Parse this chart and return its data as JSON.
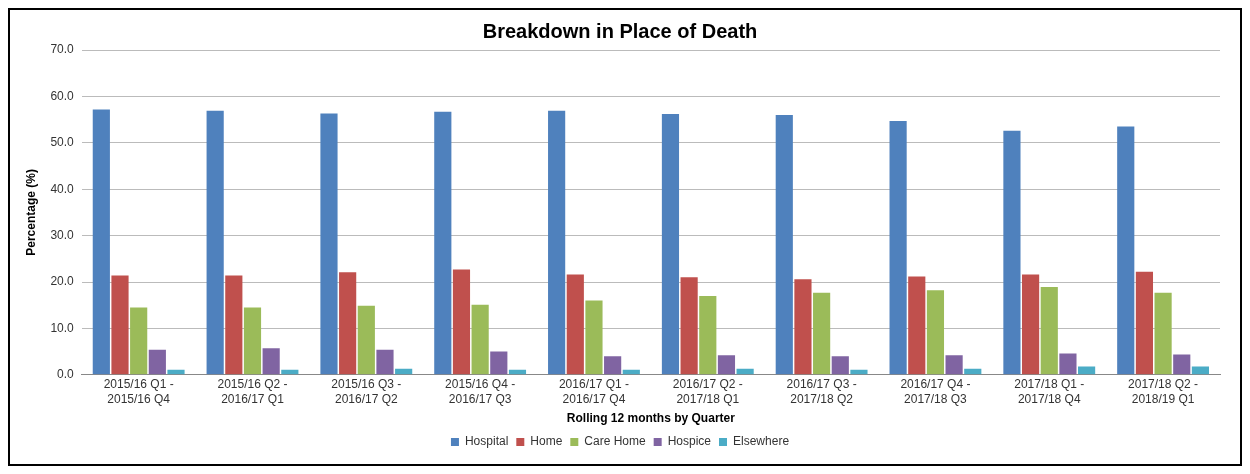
{
  "chart_data": {
    "type": "bar",
    "title": "Breakdown in Place of Death",
    "xlabel": "Rolling 12 months by Quarter",
    "ylabel": "Percentage (%)",
    "categories": [
      "2015/16 Q1 - 2015/16 Q4",
      "2015/16 Q2 - 2016/17 Q1",
      "2015/16 Q3 - 2016/17 Q2",
      "2015/16 Q4 - 2016/17 Q3",
      "2016/17 Q1 - 2016/17 Q4",
      "2016/17 Q2 - 2017/18 Q1",
      "2016/17 Q3 - 2017/18 Q2",
      "2016/17 Q4 - 2017/18 Q3",
      "2017/18 Q1 - 2017/18 Q4",
      "2017/18 Q2 - 2018/19 Q1"
    ],
    "series": [
      {
        "name": "Hospital",
        "color": "#4f81bd",
        "values": [
          57.2,
          56.9,
          56.3,
          56.7,
          56.9,
          56.2,
          56.0,
          54.7,
          52.6,
          53.5
        ]
      },
      {
        "name": "Home",
        "color": "#c0504d",
        "values": [
          21.4,
          21.4,
          22.1,
          22.7,
          21.6,
          21.0,
          20.6,
          21.2,
          21.6,
          22.2
        ]
      },
      {
        "name": "Care Home",
        "color": "#9bbb59",
        "values": [
          14.5,
          14.5,
          14.9,
          15.1,
          16.0,
          17.0,
          17.7,
          18.2,
          18.9,
          17.7
        ]
      },
      {
        "name": "Hospice",
        "color": "#8064a2",
        "values": [
          5.4,
          5.7,
          5.4,
          5.0,
          4.0,
          4.2,
          4.0,
          4.2,
          4.6,
          4.4
        ]
      },
      {
        "name": "Elsewhere",
        "color": "#4bacc6",
        "values": [
          1.1,
          1.1,
          1.3,
          1.1,
          1.1,
          1.3,
          1.1,
          1.3,
          1.8,
          1.8
        ]
      }
    ],
    "ylim": [
      0,
      70
    ],
    "yticks": [
      {
        "value": 0,
        "label": "0.0"
      },
      {
        "value": 10,
        "label": "10.0"
      },
      {
        "value": 20,
        "label": "20.0"
      },
      {
        "value": 30,
        "label": "30.0"
      },
      {
        "value": 40,
        "label": "40.0"
      },
      {
        "value": 50,
        "label": "50.0"
      },
      {
        "value": 60,
        "label": "60.0"
      },
      {
        "value": 70,
        "label": "70.0"
      }
    ],
    "grid": "y",
    "legend": "bottom"
  }
}
